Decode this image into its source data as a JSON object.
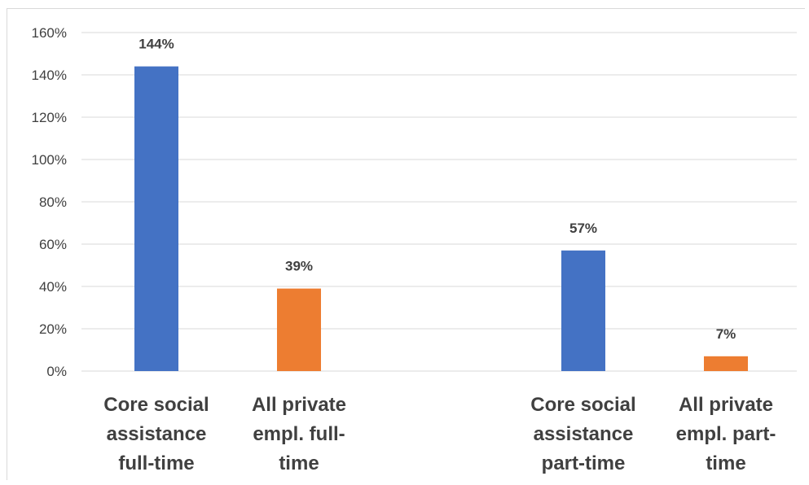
{
  "chart_data": {
    "type": "bar",
    "categories": [
      [
        "Core social",
        "assistance",
        "full-time"
      ],
      [
        "All private",
        "empl. full-",
        "time"
      ],
      [
        "Core social",
        "assistance",
        "part-time"
      ],
      [
        "All private",
        "empl. part-",
        "time"
      ]
    ],
    "values": [
      1.44,
      0.39,
      0.57,
      0.07
    ],
    "data_labels": [
      "144%",
      "39%",
      "57%",
      "7%"
    ],
    "bar_colors": [
      "#4472C4",
      "#ED7D31",
      "#4472C4",
      "#ED7D31"
    ],
    "y_ticks": [
      "0%",
      "20%",
      "40%",
      "60%",
      "80%",
      "100%",
      "120%",
      "140%",
      "160%"
    ],
    "ylim": [
      0,
      1.6
    ],
    "grid": true,
    "grid_color": "#d9d9d9",
    "title": "",
    "xlabel": "",
    "ylabel": ""
  }
}
